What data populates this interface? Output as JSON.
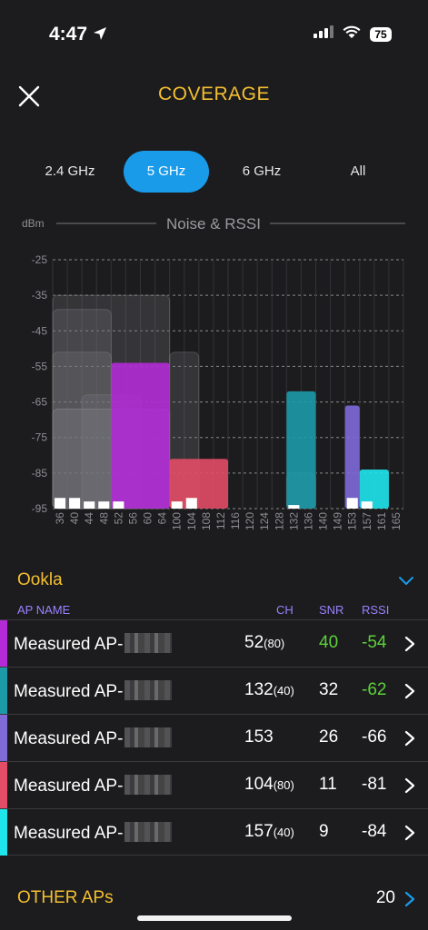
{
  "status": {
    "time": "4:47",
    "battery": "75"
  },
  "header": {
    "title": "COVERAGE"
  },
  "tabs": [
    {
      "label": "2.4 GHz",
      "active": false
    },
    {
      "label": "5 GHz",
      "active": true
    },
    {
      "label": "6 GHz",
      "active": false
    },
    {
      "label": "All",
      "active": false
    }
  ],
  "chart_data": {
    "type": "bar",
    "title": "Noise & RSSI",
    "ylabel": "dBm",
    "ylim": [
      -95,
      -25
    ],
    "yticks": [
      -25,
      -35,
      -45,
      -55,
      -65,
      -75,
      -85,
      -95
    ],
    "categories": [
      "36",
      "40",
      "44",
      "48",
      "52",
      "56",
      "60",
      "64",
      "100",
      "104",
      "108",
      "112",
      "116",
      "120",
      "124",
      "128",
      "132",
      "136",
      "140",
      "149",
      "153",
      "157",
      "161",
      "165"
    ],
    "measured": [
      {
        "name": "Measured AP-",
        "from": "52",
        "to": "64",
        "rssi": -54,
        "color": "#b32bd6"
      },
      {
        "name": "Measured AP-",
        "from": "132",
        "to": "136",
        "rssi": -62,
        "color": "#1d9aa8"
      },
      {
        "name": "Measured AP-",
        "from": "153",
        "to": "153",
        "rssi": -66,
        "color": "#7f6ad8"
      },
      {
        "name": "Measured AP-",
        "from": "100",
        "to": "112",
        "rssi": -81,
        "color": "#e34d66"
      },
      {
        "name": "Measured AP-",
        "from": "157",
        "to": "161",
        "rssi": -84,
        "color": "#1fe5ec"
      }
    ],
    "other_aps": [
      {
        "from": "36",
        "to": "64",
        "rssi": -35
      },
      {
        "from": "36",
        "to": "48",
        "rssi": -39
      },
      {
        "from": "36",
        "to": "48",
        "rssi": -51
      },
      {
        "from": "100",
        "to": "104",
        "rssi": -51
      },
      {
        "from": "44",
        "to": "56",
        "rssi": -63
      },
      {
        "from": "36",
        "to": "64",
        "rssi": -67
      },
      {
        "from": "36",
        "to": "64",
        "rssi": -67
      },
      {
        "from": "132",
        "to": "136",
        "rssi": -85
      }
    ],
    "noise": [
      {
        "channel": "36",
        "dbm": -92
      },
      {
        "channel": "40",
        "dbm": -92
      },
      {
        "channel": "44",
        "dbm": -93
      },
      {
        "channel": "48",
        "dbm": -93
      },
      {
        "channel": "52",
        "dbm": -93
      },
      {
        "channel": "100",
        "dbm": -93
      },
      {
        "channel": "104",
        "dbm": -92
      },
      {
        "channel": "132",
        "dbm": -94
      },
      {
        "channel": "153",
        "dbm": -92
      },
      {
        "channel": "157",
        "dbm": -93
      }
    ]
  },
  "section": {
    "title": "Ookla"
  },
  "table": {
    "headers": {
      "name": "AP NAME",
      "ch": "CH",
      "snr": "SNR",
      "rssi": "RSSI"
    },
    "rows": [
      {
        "name": "Measured AP-",
        "ch": "52",
        "width": "(80)",
        "snr": "40",
        "rssi": "-54",
        "color": "#b32bd6",
        "snr_color": "#5bd13a",
        "rssi_color": "#5bd13a"
      },
      {
        "name": "Measured AP-",
        "ch": "132",
        "width": "(40)",
        "snr": "32",
        "rssi": "-62",
        "color": "#1d9aa8",
        "snr_color": "#ffffff",
        "rssi_color": "#5bd13a"
      },
      {
        "name": "Measured AP-",
        "ch": "153",
        "width": "",
        "snr": "26",
        "rssi": "-66",
        "color": "#7f6ad8",
        "snr_color": "#ffffff",
        "rssi_color": "#ffffff"
      },
      {
        "name": "Measured AP-",
        "ch": "104",
        "width": "(80)",
        "snr": "11",
        "rssi": "-81",
        "color": "#e34d66",
        "snr_color": "#ffffff",
        "rssi_color": "#ffffff"
      },
      {
        "name": "Measured AP-",
        "ch": "157",
        "width": "(40)",
        "snr": "9",
        "rssi": "-84",
        "color": "#1fe5ec",
        "snr_color": "#ffffff",
        "rssi_color": "#ffffff"
      }
    ]
  },
  "other": {
    "label": "OTHER APs",
    "count": "20"
  },
  "colors": {
    "accent": "#f5bf30",
    "tab_active": "#1a9bea",
    "header_purple": "#9a80ff",
    "good": "#5bd13a"
  }
}
